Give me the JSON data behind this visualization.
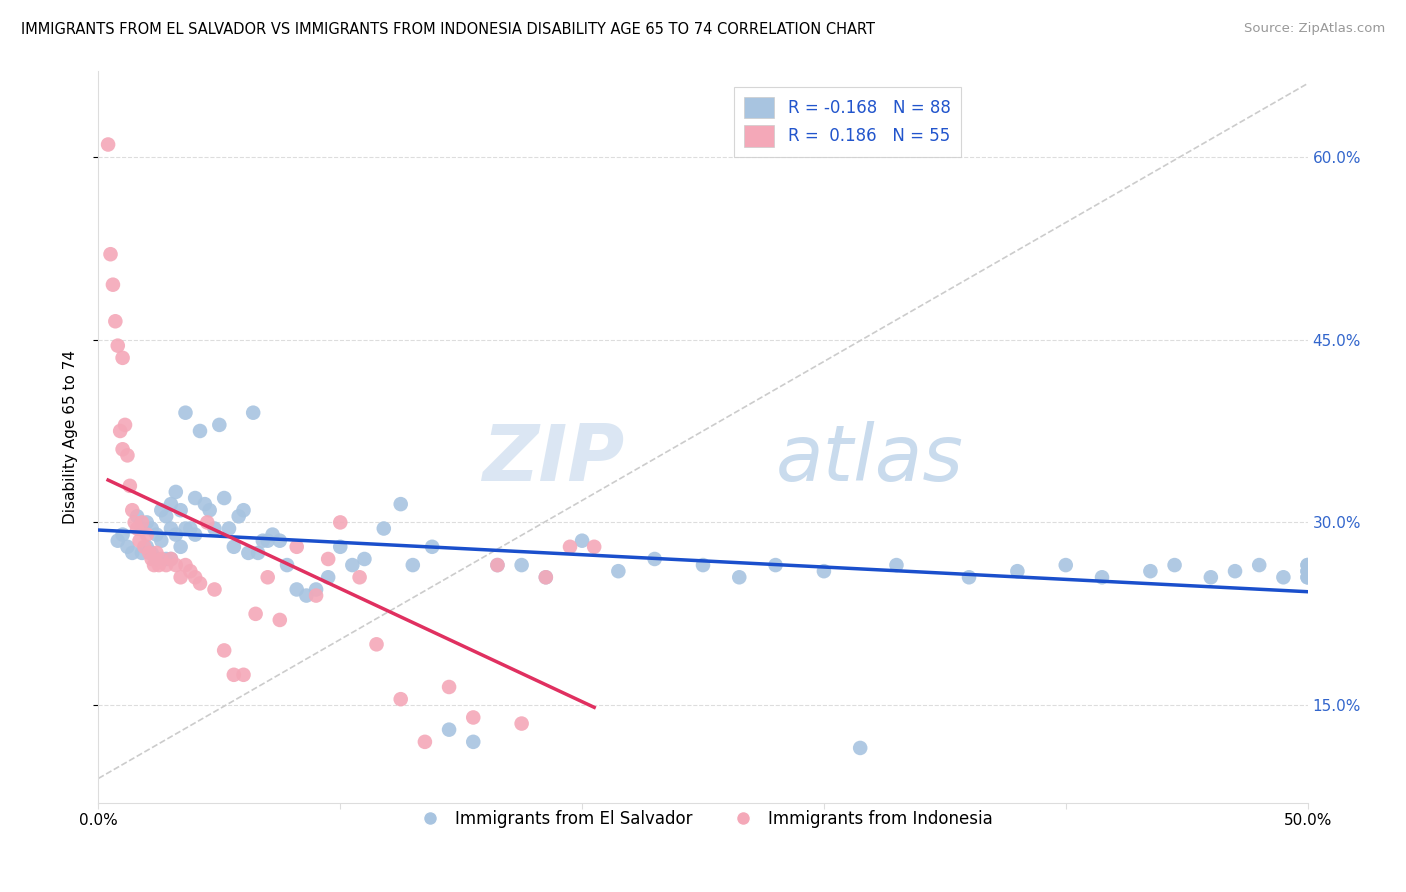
{
  "title": "IMMIGRANTS FROM EL SALVADOR VS IMMIGRANTS FROM INDONESIA DISABILITY AGE 65 TO 74 CORRELATION CHART",
  "source": "Source: ZipAtlas.com",
  "ylabel": "Disability Age 65 to 74",
  "xlim": [
    0.0,
    0.5
  ],
  "ylim": [
    0.07,
    0.67
  ],
  "y_ticks": [
    0.15,
    0.3,
    0.45,
    0.6
  ],
  "y_tick_labels": [
    "15.0%",
    "30.0%",
    "45.0%",
    "60.0%"
  ],
  "x_ticks": [
    0.0,
    0.1,
    0.2,
    0.3,
    0.4,
    0.5
  ],
  "x_tick_labels": [
    "0.0%",
    "",
    "",
    "",
    "",
    "50.0%"
  ],
  "legend_r_blue": "-0.168",
  "legend_n_blue": "88",
  "legend_r_pink": "0.186",
  "legend_n_pink": "55",
  "blue_color": "#a8c4e0",
  "pink_color": "#f4a8b8",
  "blue_line_color": "#1a4fcc",
  "pink_line_color": "#e03060",
  "diagonal_color": "#cccccc",
  "watermark_zip": "ZIP",
  "watermark_atlas": "atlas",
  "blue_points_x": [
    0.008,
    0.01,
    0.012,
    0.014,
    0.016,
    0.018,
    0.018,
    0.02,
    0.02,
    0.022,
    0.022,
    0.024,
    0.024,
    0.026,
    0.026,
    0.028,
    0.028,
    0.03,
    0.03,
    0.03,
    0.032,
    0.032,
    0.034,
    0.034,
    0.036,
    0.036,
    0.038,
    0.04,
    0.04,
    0.042,
    0.044,
    0.046,
    0.048,
    0.05,
    0.052,
    0.054,
    0.056,
    0.058,
    0.06,
    0.062,
    0.064,
    0.066,
    0.068,
    0.07,
    0.072,
    0.075,
    0.078,
    0.082,
    0.086,
    0.09,
    0.095,
    0.1,
    0.105,
    0.11,
    0.118,
    0.125,
    0.13,
    0.138,
    0.145,
    0.155,
    0.165,
    0.175,
    0.185,
    0.2,
    0.215,
    0.23,
    0.25,
    0.265,
    0.28,
    0.3,
    0.315,
    0.33,
    0.36,
    0.38,
    0.4,
    0.415,
    0.435,
    0.445,
    0.46,
    0.47,
    0.48,
    0.49,
    0.5,
    0.5,
    0.5,
    0.5,
    0.5,
    0.5
  ],
  "blue_points_y": [
    0.285,
    0.29,
    0.28,
    0.275,
    0.305,
    0.295,
    0.275,
    0.3,
    0.28,
    0.295,
    0.275,
    0.29,
    0.27,
    0.31,
    0.285,
    0.305,
    0.27,
    0.315,
    0.295,
    0.27,
    0.325,
    0.29,
    0.31,
    0.28,
    0.39,
    0.295,
    0.295,
    0.32,
    0.29,
    0.375,
    0.315,
    0.31,
    0.295,
    0.38,
    0.32,
    0.295,
    0.28,
    0.305,
    0.31,
    0.275,
    0.39,
    0.275,
    0.285,
    0.285,
    0.29,
    0.285,
    0.265,
    0.245,
    0.24,
    0.245,
    0.255,
    0.28,
    0.265,
    0.27,
    0.295,
    0.315,
    0.265,
    0.28,
    0.13,
    0.12,
    0.265,
    0.265,
    0.255,
    0.285,
    0.26,
    0.27,
    0.265,
    0.255,
    0.265,
    0.26,
    0.115,
    0.265,
    0.255,
    0.26,
    0.265,
    0.255,
    0.26,
    0.265,
    0.255,
    0.26,
    0.265,
    0.255,
    0.265,
    0.26,
    0.255,
    0.265,
    0.26,
    0.255
  ],
  "pink_points_x": [
    0.004,
    0.005,
    0.006,
    0.007,
    0.008,
    0.009,
    0.01,
    0.01,
    0.011,
    0.012,
    0.013,
    0.014,
    0.015,
    0.016,
    0.017,
    0.018,
    0.019,
    0.02,
    0.021,
    0.022,
    0.023,
    0.024,
    0.025,
    0.026,
    0.028,
    0.03,
    0.032,
    0.034,
    0.036,
    0.038,
    0.04,
    0.042,
    0.045,
    0.048,
    0.052,
    0.056,
    0.06,
    0.065,
    0.07,
    0.075,
    0.082,
    0.09,
    0.095,
    0.1,
    0.108,
    0.115,
    0.125,
    0.135,
    0.145,
    0.155,
    0.165,
    0.175,
    0.185,
    0.195,
    0.205
  ],
  "pink_points_y": [
    0.61,
    0.52,
    0.495,
    0.465,
    0.445,
    0.375,
    0.435,
    0.36,
    0.38,
    0.355,
    0.33,
    0.31,
    0.3,
    0.295,
    0.285,
    0.3,
    0.28,
    0.29,
    0.275,
    0.27,
    0.265,
    0.275,
    0.265,
    0.27,
    0.265,
    0.27,
    0.265,
    0.255,
    0.265,
    0.26,
    0.255,
    0.25,
    0.3,
    0.245,
    0.195,
    0.175,
    0.175,
    0.225,
    0.255,
    0.22,
    0.28,
    0.24,
    0.27,
    0.3,
    0.255,
    0.2,
    0.155,
    0.12,
    0.165,
    0.14,
    0.265,
    0.135,
    0.255,
    0.28,
    0.28
  ]
}
